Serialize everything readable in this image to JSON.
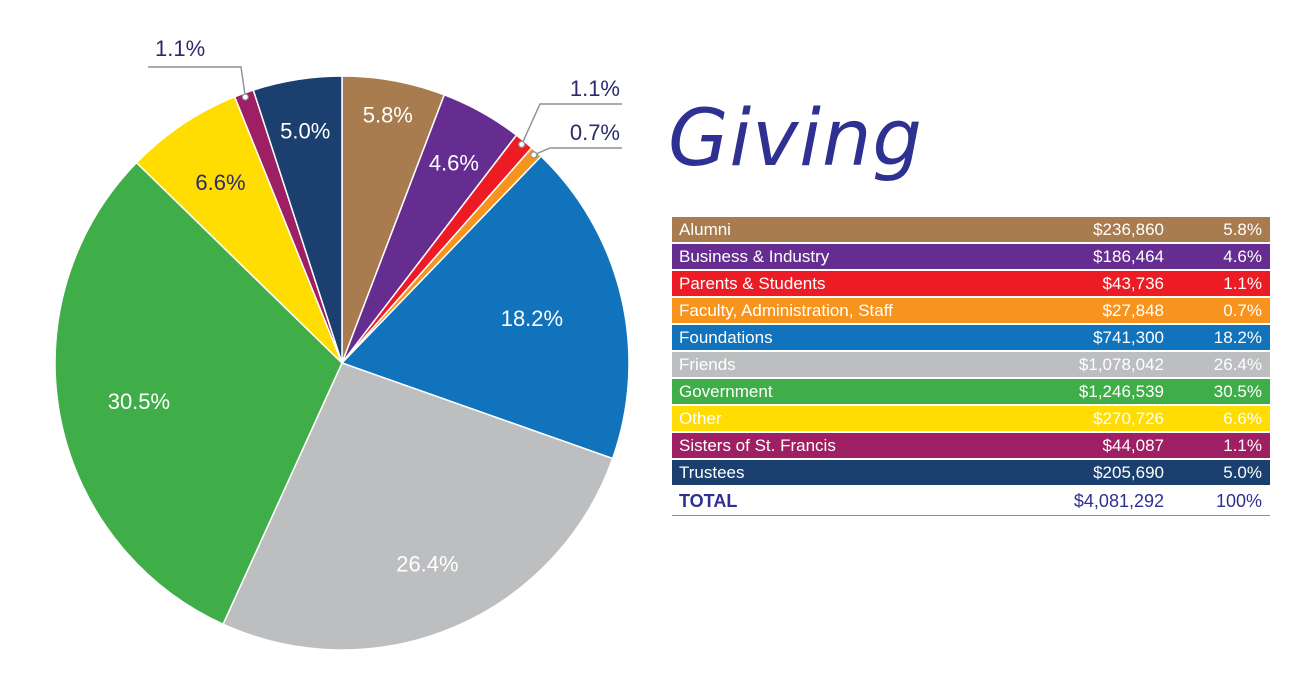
{
  "chart_data": {
    "type": "pie",
    "title": "Giving",
    "slices": [
      {
        "label": "Alumni",
        "amount": "$236,860",
        "percent_label": "5.8%",
        "value": 5.8,
        "color": "#a87c4f",
        "label_color": "#ffffff"
      },
      {
        "label": "Business & Industry",
        "amount": "$186,464",
        "percent_label": "4.6%",
        "value": 4.6,
        "color": "#662d91",
        "label_color": "#ffffff"
      },
      {
        "label": "Parents & Students",
        "amount": "$43,736",
        "percent_label": "1.1%",
        "value": 1.1,
        "color": "#ed1c24",
        "label_color": "#2b2b6b"
      },
      {
        "label": "Faculty, Administration, Staff",
        "amount": "$27,848",
        "percent_label": "0.7%",
        "value": 0.7,
        "color": "#f7941d",
        "label_color": "#2b2b6b"
      },
      {
        "label": "Foundations",
        "amount": "$741,300",
        "percent_label": "18.2%",
        "value": 18.2,
        "color": "#1173bb",
        "label_color": "#ffffff"
      },
      {
        "label": "Friends",
        "amount": "$1,078,042",
        "percent_label": "26.4%",
        "value": 26.4,
        "color": "#bcbec0",
        "label_color": "#ffffff"
      },
      {
        "label": "Government",
        "amount": "$1,246,539",
        "percent_label": "30.5%",
        "value": 30.5,
        "color": "#3fae49",
        "label_color": "#ffffff"
      },
      {
        "label": "Other",
        "amount": "$270,726",
        "percent_label": "6.6%",
        "value": 6.6,
        "color": "#ffdd00",
        "label_color": "#2b2b6b"
      },
      {
        "label": "Sisters of St. Francis",
        "amount": "$44,087",
        "percent_label": "1.1%",
        "value": 1.1,
        "color": "#9e1f63",
        "label_color": "#2b2b6b"
      },
      {
        "label": "Trustees",
        "amount": "$205,690",
        "percent_label": "5.0%",
        "value": 5.0,
        "color": "#1b3f6e",
        "label_color": "#ffffff"
      }
    ],
    "total": {
      "label": "TOTAL",
      "amount": "$4,081,292",
      "percent_label": "100%"
    }
  }
}
